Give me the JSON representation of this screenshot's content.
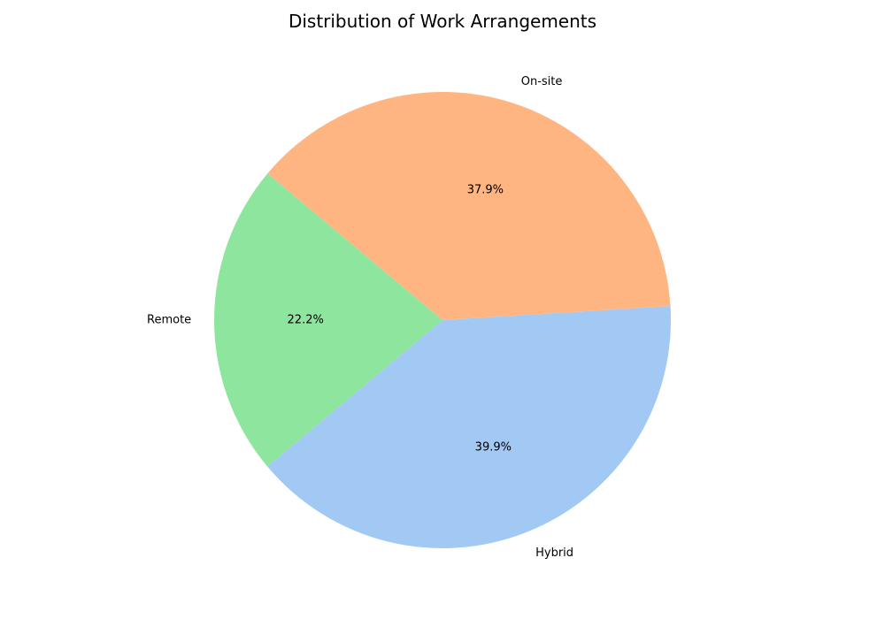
{
  "chart_data": {
    "type": "pie",
    "title": "Distribution of Work Arrangements",
    "start_angle_deg": 140,
    "direction": "counterclockwise",
    "slices": [
      {
        "label": "Remote",
        "value": 22.2,
        "pct_label": "22.2%",
        "color": "#8ee59e"
      },
      {
        "label": "Hybrid",
        "value": 39.9,
        "pct_label": "39.9%",
        "color": "#a2c8f4"
      },
      {
        "label": "On-site",
        "value": 37.9,
        "pct_label": "37.9%",
        "color": "#ffb581"
      }
    ]
  }
}
